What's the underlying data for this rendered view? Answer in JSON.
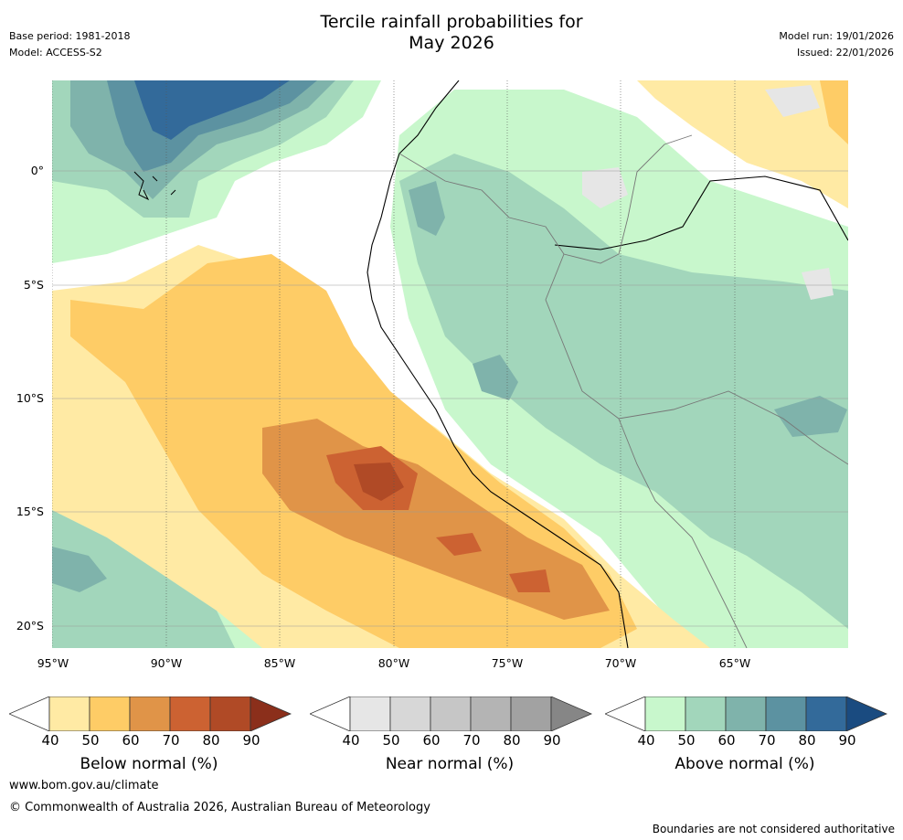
{
  "header": {
    "title_line1": "Tercile rainfall probabilities for",
    "title_line2": "May 2026",
    "base_period": "Base period: 1981-2018",
    "model": "Model: ACCESS-S2",
    "model_run": "Model run: 19/01/2026",
    "issued": "Issued: 22/01/2026"
  },
  "map": {
    "lat_labels": [
      "0°",
      "5°S",
      "10°S",
      "15°S",
      "20°S"
    ],
    "lon_labels": [
      "95°W",
      "90°W",
      "85°W",
      "80°W",
      "75°W",
      "70°W",
      "65°W"
    ]
  },
  "colorbars": {
    "ticks": [
      "40",
      "50",
      "60",
      "70",
      "80",
      "90"
    ],
    "below": {
      "title": "Below normal (%)",
      "colors": [
        "#ffffff",
        "#ffeaa4",
        "#fecc66",
        "#e09448",
        "#cc6232",
        "#b04a26",
        "#8b2f1b"
      ]
    },
    "near": {
      "title": "Near normal (%)",
      "colors": [
        "#ffffff",
        "#e6e6e6",
        "#d7d7d7",
        "#c6c6c6",
        "#b4b4b4",
        "#a2a2a2",
        "#868686"
      ]
    },
    "above": {
      "title": "Above normal (%)",
      "colors": [
        "#ffffff",
        "#c8f7cc",
        "#a2d6bb",
        "#7fb3ab",
        "#5c92a1",
        "#336a9a",
        "#1a4b80"
      ]
    }
  },
  "footer": {
    "website": "www.bom.gov.au/climate",
    "copyright": "© Commonwealth of Australia 2026, Australian Bureau of Meteorology",
    "disclaimer": "Boundaries are not considered authoritative"
  }
}
